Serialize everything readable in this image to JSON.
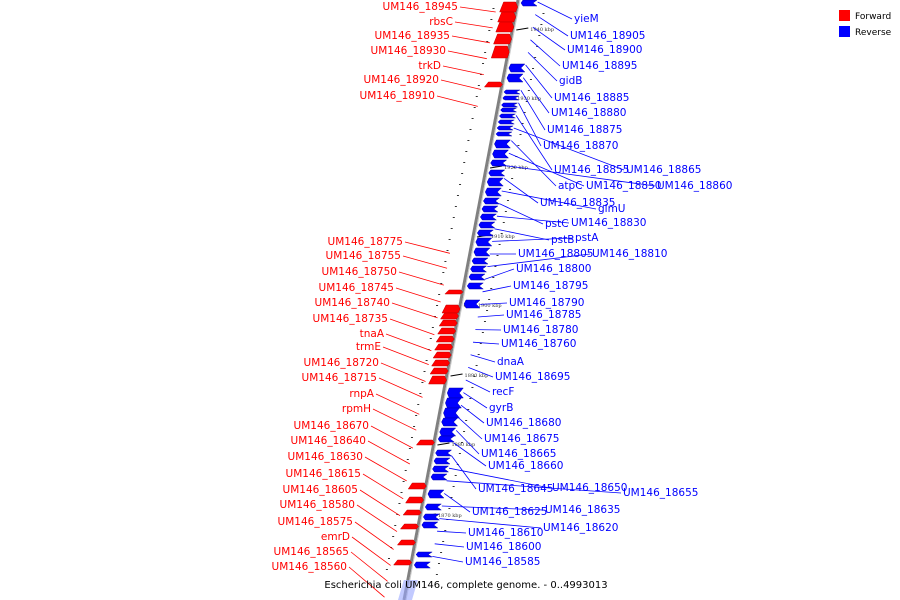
{
  "caption": "Escherichia coli UM146, complete genome. - 0..4993013",
  "colors": {
    "forward": "#ff0000",
    "reverse": "#0000ff",
    "axis": "#808080"
  },
  "legend": [
    {
      "label": "Forward",
      "color": "#ff0000"
    },
    {
      "label": "Reverse",
      "color": "#0000ff"
    }
  ],
  "ticks": [
    "1940 kbp",
    "1930 kbp",
    "1920 kbp",
    "1910 kbp",
    "1900 kbp",
    "1890 kbp",
    "1880 kbp",
    "1870 kbp"
  ],
  "forward_labels": [
    "UM146_18945",
    "rbsC",
    "UM146_18935",
    "UM146_18930",
    "trkD",
    "UM146_18920",
    "UM146_18910",
    "UM146_18775",
    "UM146_18755",
    "UM146_18750",
    "UM146_18745",
    "UM146_18740",
    "UM146_18735",
    "tnaA",
    "trmE",
    "UM146_18720",
    "UM146_18715",
    "rnpA",
    "rpmH",
    "UM146_18670",
    "UM146_18640",
    "UM146_18630",
    "UM146_18615",
    "UM146_18605",
    "UM146_18580",
    "UM146_18575",
    "emrD",
    "UM146_18565",
    "UM146_18560"
  ],
  "reverse_labels": [
    "yieM",
    "UM146_18905",
    "UM146_18900",
    "UM146_18895",
    "gidB",
    "UM146_18885",
    "UM146_18880",
    "UM146_18875",
    "UM146_18870",
    "UM146_18855",
    "UM146_18865",
    "atpC",
    "UM146_18850",
    "UM146_18860",
    "UM146_18835",
    "glmU",
    "pstC",
    "UM146_18830",
    "pstB",
    "pstA",
    "UM146_18805",
    "UM146_18810",
    "UM146_18800",
    "UM146_18795",
    "UM146_18790",
    "UM146_18785",
    "UM146_18780",
    "UM146_18760",
    "dnaA",
    "UM146_18695",
    "recF",
    "gyrB",
    "UM146_18680",
    "UM146_18675",
    "UM146_18665",
    "UM146_18660",
    "UM146_18645",
    "UM146_18650",
    "UM146_18655",
    "UM146_18625",
    "UM146_18635",
    "UM146_18620",
    "UM146_18610",
    "UM146_18600",
    "UM146_18585"
  ]
}
